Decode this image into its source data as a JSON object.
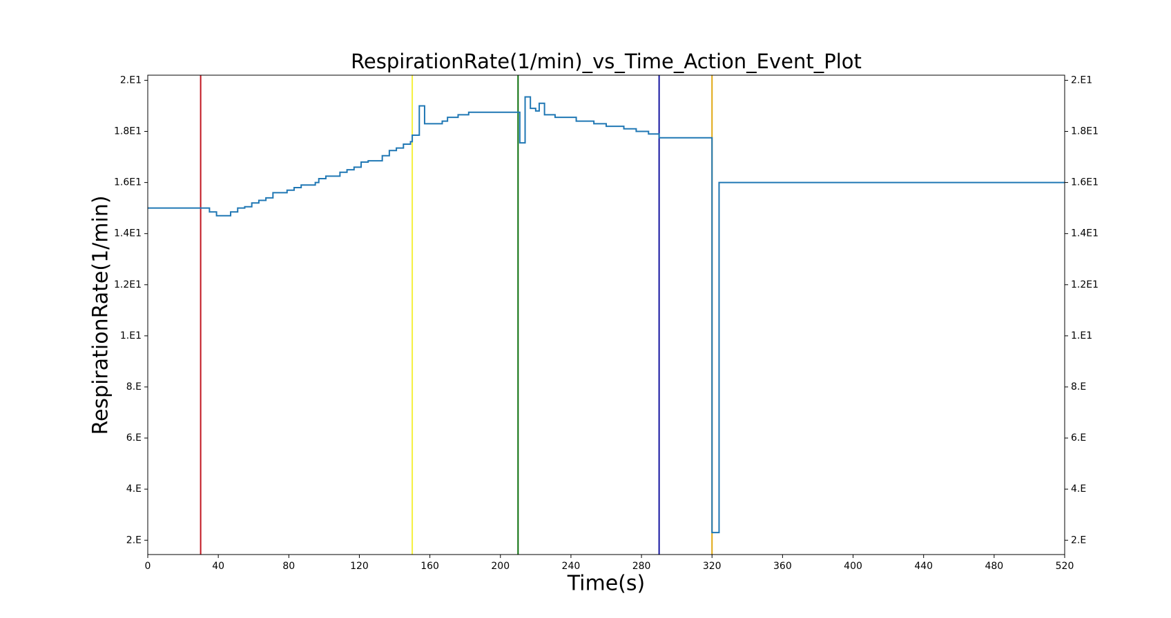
{
  "chart_data": {
    "type": "line",
    "title": "RespirationRate(1/min)_vs_Time_Action_Event_Plot",
    "x_label": "Time(s)",
    "y_label": "RespirationRate(1/min)",
    "xlim": [
      0,
      520
    ],
    "xticks": [
      0,
      40,
      80,
      120,
      160,
      200,
      240,
      280,
      320,
      360,
      400,
      440,
      480,
      520
    ],
    "ylim": [
      1.44,
      20.2
    ],
    "yticks": [
      {
        "value": 2,
        "label": "2.E"
      },
      {
        "value": 4,
        "label": "4.E"
      },
      {
        "value": 6,
        "label": "6.E"
      },
      {
        "value": 8,
        "label": "8.E"
      },
      {
        "value": 10,
        "label": "1.E1"
      },
      {
        "value": 12,
        "label": "1.2E1"
      },
      {
        "value": 14,
        "label": "1.4E1"
      },
      {
        "value": 16,
        "label": "1.6E1"
      },
      {
        "value": 18,
        "label": "1.8E1"
      },
      {
        "value": 20,
        "label": "2.E1"
      }
    ],
    "step": true,
    "series": [
      {
        "color": "#1f77b4",
        "x": [
          0,
          35,
          39,
          47,
          51,
          55,
          59,
          63,
          67,
          71,
          79,
          83,
          87,
          95,
          97,
          101,
          109,
          113,
          117,
          121,
          125,
          133,
          137,
          141,
          145,
          149,
          150,
          154,
          157,
          167,
          170,
          176,
          182,
          211,
          214,
          217,
          220,
          222,
          225,
          231,
          243,
          253,
          260,
          270,
          277,
          284,
          290,
          320,
          324,
          520
        ],
        "values": [
          15.0,
          14.85,
          14.7,
          14.85,
          15.0,
          15.05,
          15.2,
          15.3,
          15.4,
          15.6,
          15.7,
          15.8,
          15.9,
          16.0,
          16.15,
          16.25,
          16.4,
          16.5,
          16.6,
          16.8,
          16.85,
          17.05,
          17.25,
          17.35,
          17.5,
          17.6,
          17.85,
          19.0,
          18.3,
          18.4,
          18.55,
          18.65,
          18.75,
          17.55,
          19.35,
          18.9,
          18.8,
          19.1,
          18.65,
          18.55,
          18.4,
          18.3,
          18.2,
          18.1,
          18.0,
          17.9,
          17.75,
          2.3,
          16.0,
          16.0
        ]
      }
    ],
    "events": [
      {
        "x": 30,
        "color": "#c0141e"
      },
      {
        "x": 150,
        "color": "#f5f03c"
      },
      {
        "x": 210,
        "color": "#0a6e0a"
      },
      {
        "x": 290,
        "color": "#1414a0"
      },
      {
        "x": 320,
        "color": "#e0a814"
      }
    ]
  }
}
